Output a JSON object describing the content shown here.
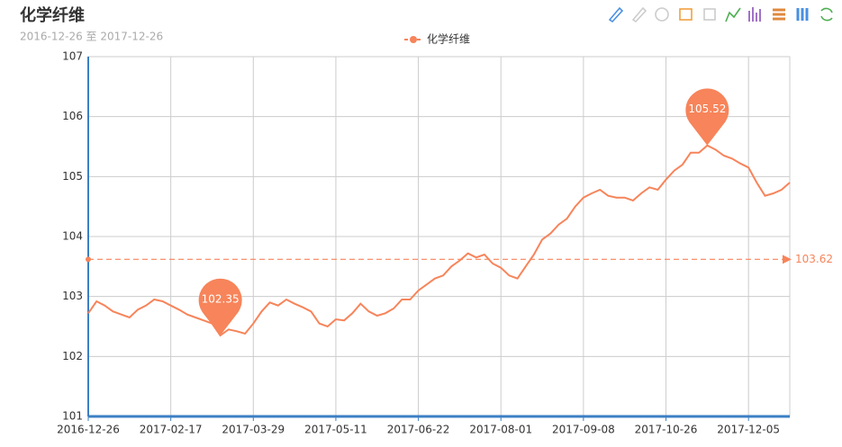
{
  "chart_data": {
    "type": "line",
    "title": "化学纤维",
    "subtitle": "2016-12-26 至 2017-12-26",
    "categories": [
      "2016-12-26",
      null,
      null,
      null,
      null,
      null,
      null,
      null,
      null,
      null,
      "2017-02-17",
      null,
      null,
      null,
      null,
      null,
      null,
      null,
      null,
      null,
      "2017-03-29",
      null,
      null,
      null,
      null,
      null,
      null,
      null,
      null,
      null,
      "2017-05-11",
      null,
      null,
      null,
      null,
      null,
      null,
      null,
      null,
      null,
      "2017-06-22",
      null,
      null,
      null,
      null,
      null,
      null,
      null,
      null,
      null,
      "2017-08-01",
      null,
      null,
      null,
      null,
      null,
      null,
      null,
      null,
      null,
      "2017-09-08",
      null,
      null,
      null,
      null,
      null,
      null,
      null,
      null,
      null,
      "2017-10-26",
      null,
      null,
      null,
      null,
      null,
      null,
      null,
      null,
      null,
      "2017-12-05",
      null,
      null,
      null,
      null,
      null
    ],
    "series": [
      {
        "name": "化学纤维",
        "color": "#f7845a",
        "values": [
          102.72,
          102.92,
          102.85,
          102.75,
          102.7,
          102.65,
          102.78,
          102.85,
          102.95,
          102.92,
          102.85,
          102.78,
          102.7,
          102.65,
          102.6,
          102.55,
          102.35,
          102.45,
          102.42,
          102.38,
          102.55,
          102.75,
          102.9,
          102.85,
          102.95,
          102.88,
          102.82,
          102.75,
          102.55,
          102.5,
          102.62,
          102.6,
          102.72,
          102.88,
          102.75,
          102.68,
          102.72,
          102.8,
          102.95,
          102.95,
          103.1,
          103.2,
          103.3,
          103.35,
          103.5,
          103.6,
          103.72,
          103.65,
          103.7,
          103.55,
          103.48,
          103.35,
          103.3,
          103.5,
          103.7,
          103.95,
          104.05,
          104.2,
          104.3,
          104.5,
          104.65,
          104.72,
          104.78,
          104.68,
          104.65,
          104.65,
          104.6,
          104.72,
          104.82,
          104.78,
          104.95,
          105.1,
          105.2,
          105.4,
          105.4,
          105.52,
          105.45,
          105.35,
          105.3,
          105.22,
          105.15,
          104.9,
          104.68,
          104.72,
          104.78,
          104.9
        ]
      }
    ],
    "mark_line": 103.62,
    "ylim": [
      101,
      107
    ],
    "yticks": [
      101,
      102,
      103,
      104,
      105,
      106,
      107
    ],
    "grid": true
  }
}
